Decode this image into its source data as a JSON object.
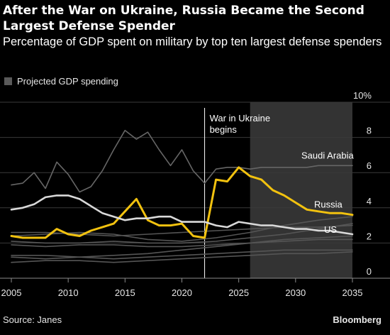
{
  "header": {
    "title": "After the War on Ukraine, Russia Became the Second Largest Defense Spender",
    "subtitle": "Percentage of GDP spent on military by top ten largest defense spenders"
  },
  "footer": {
    "source": "Source: Janes",
    "brand": "Bloomberg"
  },
  "colors": {
    "background": "#000000",
    "russia": "#f2c20f",
    "us": "#d9d9d9",
    "others": "#555555",
    "projection_band": "#333333",
    "grid": "#3a3a3a"
  },
  "chart_data": {
    "type": "line",
    "title": "After the War on Ukraine, Russia Became the Second Largest Defense Spender",
    "subtitle": "Percentage of GDP spent on military by top ten largest defense spenders",
    "xlim": [
      2005,
      2035
    ],
    "ylim": [
      0,
      10
    ],
    "x_ticks": [
      "2005",
      "2010",
      "2015",
      "2020",
      "2025",
      "2030",
      "2035"
    ],
    "y_ticks": [
      "0",
      "2",
      "4",
      "6",
      "8",
      "10%"
    ],
    "grid": true,
    "legend": {
      "position": "top-left",
      "entries": [
        {
          "label": "Projected GDP spending",
          "color": "#555555"
        }
      ]
    },
    "projection_band": {
      "x_start": 2026,
      "x_end": 2035
    },
    "annotations": [
      {
        "text_lines": [
          "War in Ukraine",
          "begins"
        ],
        "x": 2022
      }
    ],
    "series": [
      {
        "name": "Saudi Arabia",
        "color": "#666666",
        "highlight": false,
        "x": [
          2005,
          2006,
          2007,
          2008,
          2009,
          2010,
          2011,
          2012,
          2013,
          2014,
          2015,
          2016,
          2017,
          2018,
          2019,
          2020,
          2021,
          2022,
          2023,
          2024,
          2025,
          2026,
          2027,
          2028,
          2029,
          2030,
          2031,
          2032,
          2033,
          2034,
          2035
        ],
        "values": [
          5.3,
          5.4,
          6.0,
          5.1,
          6.6,
          5.9,
          4.9,
          5.2,
          6.1,
          7.3,
          8.4,
          7.9,
          8.3,
          7.3,
          6.4,
          7.3,
          6.1,
          5.4,
          6.2,
          6.3,
          6.3,
          6.2,
          6.3,
          6.3,
          6.3,
          6.3,
          6.3,
          6.4,
          6.4,
          6.4,
          6.4
        ]
      },
      {
        "name": "Russia",
        "color": "#f2c20f",
        "highlight": true,
        "x": [
          2005,
          2006,
          2007,
          2008,
          2009,
          2010,
          2011,
          2012,
          2013,
          2014,
          2015,
          2016,
          2017,
          2018,
          2019,
          2020,
          2021,
          2022,
          2023,
          2024,
          2025,
          2026,
          2027,
          2028,
          2029,
          2030,
          2031,
          2032,
          2033,
          2034,
          2035
        ],
        "values": [
          2.4,
          2.3,
          2.3,
          2.3,
          2.8,
          2.5,
          2.4,
          2.7,
          2.9,
          3.1,
          3.8,
          4.5,
          3.3,
          3.0,
          3.0,
          3.1,
          2.4,
          2.3,
          5.6,
          5.5,
          6.3,
          5.8,
          5.6,
          5.0,
          4.7,
          4.3,
          3.9,
          3.8,
          3.7,
          3.7,
          3.6
        ]
      },
      {
        "name": "US",
        "color": "#d9d9d9",
        "highlight": true,
        "x": [
          2005,
          2006,
          2007,
          2008,
          2009,
          2010,
          2011,
          2012,
          2013,
          2014,
          2015,
          2016,
          2017,
          2018,
          2019,
          2020,
          2021,
          2022,
          2023,
          2024,
          2025,
          2026,
          2027,
          2028,
          2029,
          2030,
          2031,
          2032,
          2033,
          2034,
          2035
        ],
        "values": [
          3.9,
          4.0,
          4.2,
          4.6,
          4.7,
          4.7,
          4.5,
          4.1,
          3.7,
          3.5,
          3.3,
          3.4,
          3.4,
          3.5,
          3.5,
          3.2,
          3.2,
          3.2,
          3.0,
          2.9,
          3.2,
          3.1,
          3.0,
          3.0,
          2.9,
          2.8,
          2.8,
          2.7,
          2.7,
          2.6,
          2.5
        ]
      },
      {
        "name": "",
        "color": "#555555",
        "highlight": false,
        "x": [
          2005,
          2008,
          2011,
          2014,
          2017,
          2020,
          2023,
          2026,
          2029,
          2032,
          2035
        ],
        "values": [
          2.6,
          2.6,
          2.5,
          2.4,
          2.5,
          2.6,
          2.7,
          2.8,
          2.9,
          2.9,
          3.0
        ]
      },
      {
        "name": "",
        "color": "#555555",
        "highlight": false,
        "x": [
          2005,
          2008,
          2011,
          2014,
          2017,
          2020,
          2023,
          2026,
          2029,
          2032,
          2035
        ],
        "values": [
          2.4,
          2.5,
          2.6,
          2.5,
          2.2,
          2.1,
          2.3,
          2.6,
          3.0,
          3.3,
          3.5
        ]
      },
      {
        "name": "",
        "color": "#555555",
        "highlight": false,
        "x": [
          2005,
          2008,
          2011,
          2014,
          2017,
          2020,
          2023,
          2026,
          2029,
          2032,
          2035
        ],
        "values": [
          2.1,
          2.0,
          2.0,
          2.1,
          2.0,
          2.0,
          2.1,
          2.3,
          2.5,
          2.8,
          3.1
        ]
      },
      {
        "name": "",
        "color": "#555555",
        "highlight": false,
        "x": [
          2005,
          2008,
          2011,
          2014,
          2017,
          2020,
          2023,
          2026,
          2029,
          2032,
          2035
        ],
        "values": [
          1.9,
          1.8,
          1.9,
          1.9,
          1.8,
          1.8,
          1.9,
          2.0,
          2.2,
          2.3,
          2.4
        ]
      },
      {
        "name": "",
        "color": "#555555",
        "highlight": false,
        "x": [
          2005,
          2008,
          2011,
          2014,
          2017,
          2020,
          2023,
          2026,
          2029,
          2032,
          2035
        ],
        "values": [
          1.3,
          1.3,
          1.2,
          1.3,
          1.4,
          1.6,
          1.8,
          2.0,
          2.1,
          2.2,
          2.2
        ]
      },
      {
        "name": "",
        "color": "#555555",
        "highlight": false,
        "x": [
          2005,
          2008,
          2011,
          2014,
          2017,
          2020,
          2023,
          2026,
          2029,
          2032,
          2035
        ],
        "values": [
          1.2,
          1.1,
          1.2,
          1.1,
          1.2,
          1.3,
          1.4,
          1.5,
          1.6,
          1.6,
          1.6
        ]
      },
      {
        "name": "",
        "color": "#555555",
        "highlight": false,
        "x": [
          2005,
          2008,
          2011,
          2014,
          2017,
          2020,
          2023,
          2026,
          2029,
          2032,
          2035
        ],
        "values": [
          0.9,
          1.0,
          1.0,
          0.9,
          1.0,
          1.1,
          1.2,
          1.3,
          1.4,
          1.4,
          1.5
        ]
      }
    ]
  }
}
